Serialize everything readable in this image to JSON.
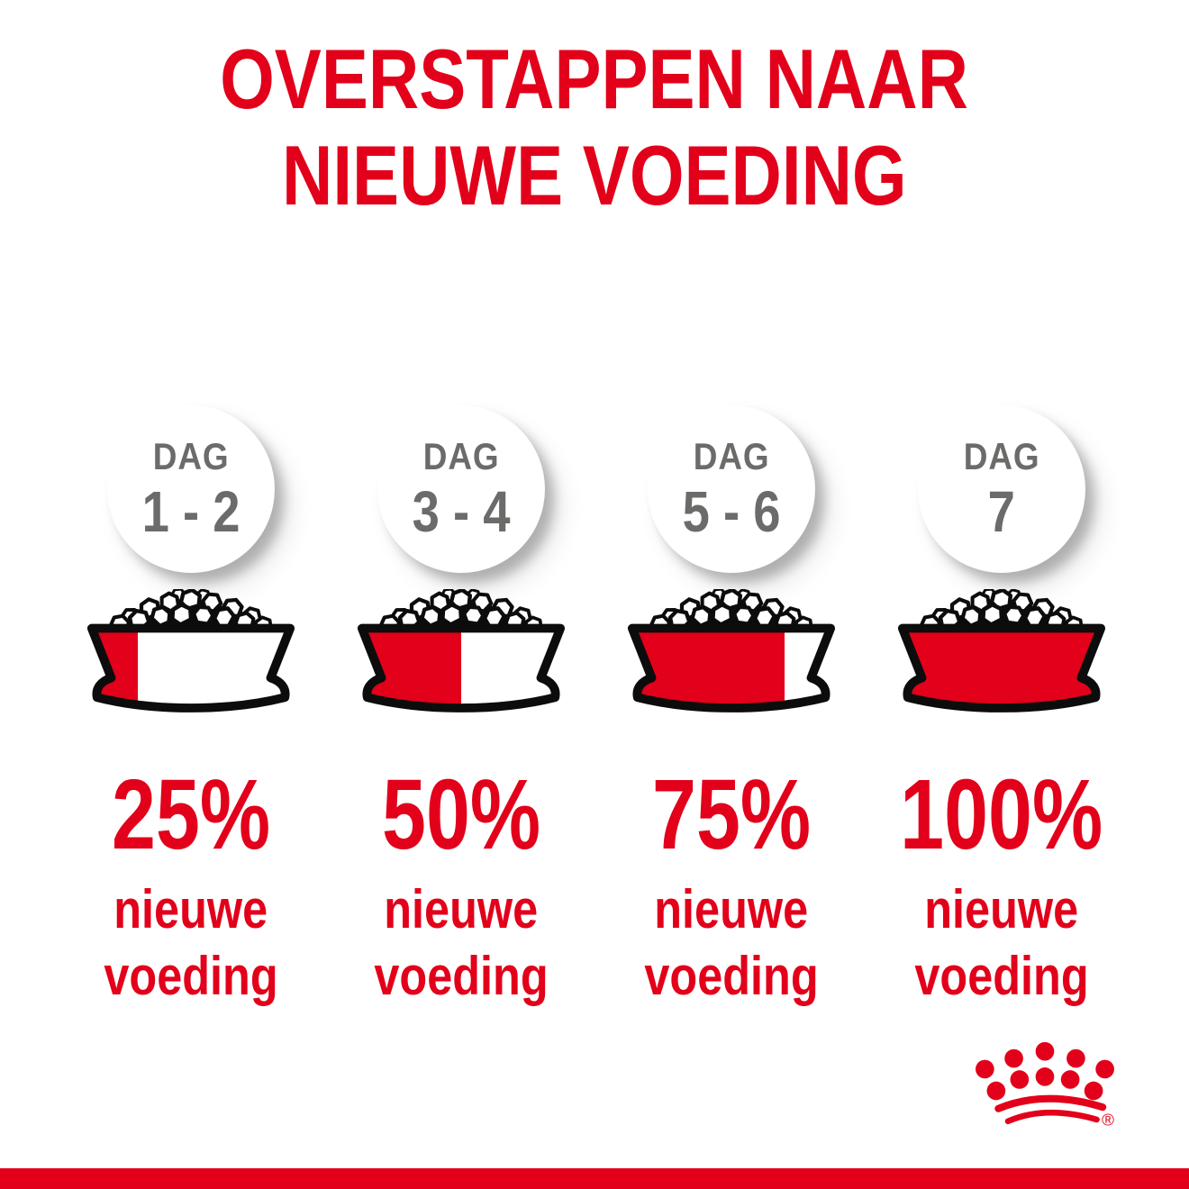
{
  "title": {
    "line1": "OVERSTAPPEN NAAR",
    "line2": "NIEUWE VOEDING"
  },
  "columns": [
    {
      "day_label": "DAG",
      "day_range": "1 - 2",
      "percent_label": "25%",
      "percent_value": 25,
      "food_label_line1": "nieuwe",
      "food_label_line2": "voeding"
    },
    {
      "day_label": "DAG",
      "day_range": "3 - 4",
      "percent_label": "50%",
      "percent_value": 50,
      "food_label_line1": "nieuwe",
      "food_label_line2": "voeding"
    },
    {
      "day_label": "DAG",
      "day_range": "5 - 6",
      "percent_label": "75%",
      "percent_value": 75,
      "food_label_line1": "nieuwe",
      "food_label_line2": "voeding"
    },
    {
      "day_label": "DAG",
      "day_range": "7",
      "percent_label": "100%",
      "percent_value": 100,
      "food_label_line1": "nieuwe",
      "food_label_line2": "voeding"
    }
  ],
  "footer": {
    "logo_name": "royal-canin-crown",
    "registered_mark": "®"
  },
  "colors": {
    "brand_red": "#e2001a",
    "day_text_gray": "#6b6b6a",
    "outline_black": "#0c0c0c",
    "bowl_white": "#ffffff"
  }
}
